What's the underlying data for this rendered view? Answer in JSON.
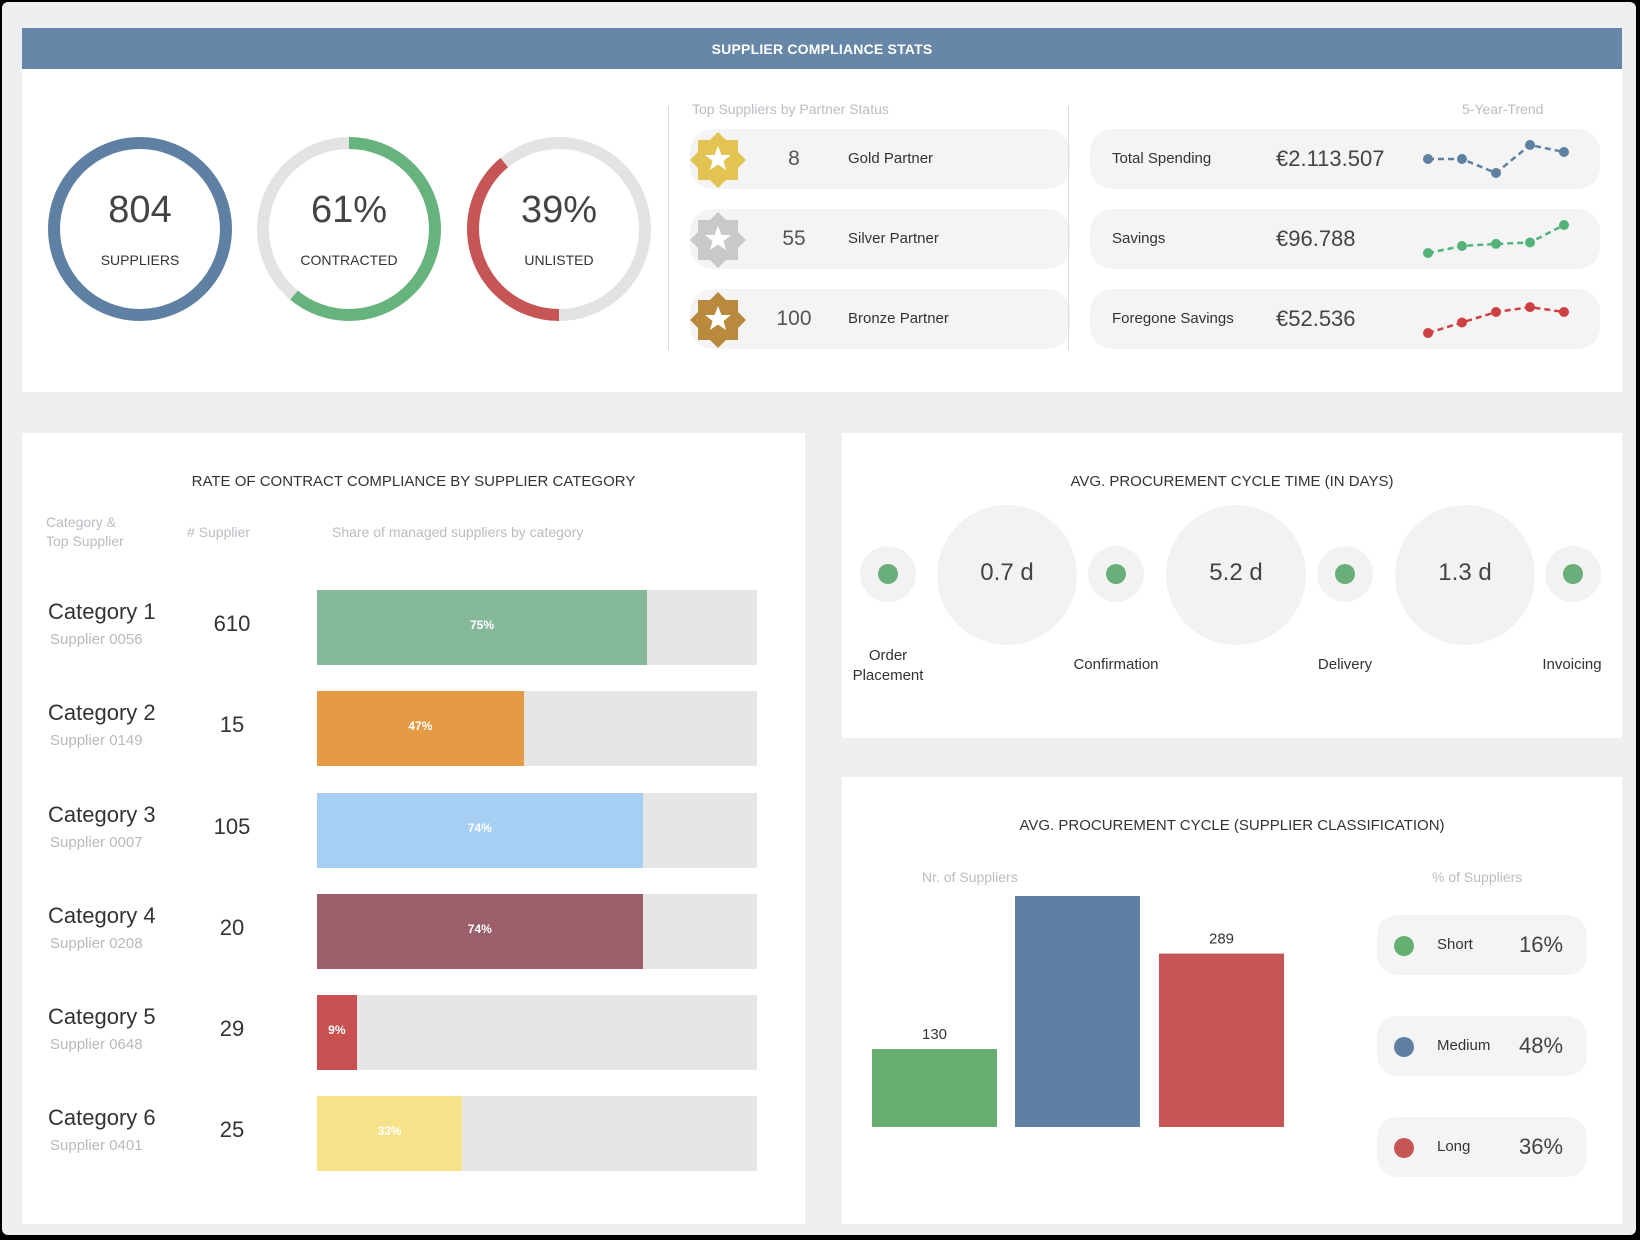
{
  "header": {
    "title": "SUPPLIER COMPLIANCE STATS"
  },
  "kpis": [
    {
      "value": "804",
      "label": "SUPPLIERS",
      "fraction": 1.0,
      "color": "#5e80a3"
    },
    {
      "value": "61%",
      "label": "CONTRACTED",
      "fraction": 0.61,
      "color": "#66b37d"
    },
    {
      "value": "39%",
      "label": "UNLISTED",
      "fraction": 0.39,
      "color": "#c65555"
    }
  ],
  "partners": {
    "title": "Top Suppliers by Partner Status",
    "items": [
      {
        "count": "8",
        "label": "Gold Partner",
        "color": "#e3c453"
      },
      {
        "count": "55",
        "label": "Silver Partner",
        "color": "#c9c9c9"
      },
      {
        "count": "100",
        "label": "Bronze Partner",
        "color": "#b98a3e"
      }
    ]
  },
  "trends": {
    "title": "5-Year-Trend",
    "items": [
      {
        "label": "Total Spending",
        "value": "€2.113.507",
        "color": "#5e80a3",
        "points": [
          2,
          2,
          0,
          4,
          3
        ]
      },
      {
        "label": "Savings",
        "value": "€96.788",
        "color": "#53b379",
        "points": [
          0,
          1,
          1.3,
          1.5,
          4
        ]
      },
      {
        "label": "Foregone Savings",
        "value": "€52.536",
        "color": "#cf4040",
        "points": [
          0,
          1.5,
          3,
          3.7,
          3
        ]
      }
    ]
  },
  "compliance": {
    "title": "RATE OF CONTRACT COMPLIANCE BY SUPPLIER CATEGORY",
    "col_category_1": "Category &",
    "col_category_2": "Top Supplier",
    "col_supplier": "# Supplier",
    "col_share": "Share of managed suppliers by category",
    "rows": [
      {
        "category": "Category 1",
        "supplier": "Supplier 0056",
        "count": "610",
        "pct_label": "75%",
        "share": 0.75,
        "color": "#85b999"
      },
      {
        "category": "Category 2",
        "supplier": "Supplier 0149",
        "count": "15",
        "pct_label": "47%",
        "share": 0.47,
        "color": "#e59b46"
      },
      {
        "category": "Category 3",
        "supplier": "Supplier 0007",
        "count": "105",
        "pct_label": "74%",
        "share": 0.74,
        "color": "#a7cef3"
      },
      {
        "category": "Category 4",
        "supplier": "Supplier 0208",
        "count": "20",
        "pct_label": "74%",
        "share": 0.74,
        "color": "#9b5f6b"
      },
      {
        "category": "Category 5",
        "supplier": "Supplier 0648",
        "count": "29",
        "pct_label": "9%",
        "share": 0.09,
        "color": "#c85050"
      },
      {
        "category": "Category 6",
        "supplier": "Supplier 0401",
        "count": "25",
        "pct_label": "33%",
        "share": 0.33,
        "color": "#f6e289"
      }
    ]
  },
  "cycle_time": {
    "title": "AVG. PROCUREMENT CYCLE TIME (IN DAYS)",
    "steps": [
      "Order\nPlacement",
      "Confirmation",
      "Delivery",
      "Invoicing"
    ],
    "durations": [
      "0.7 d",
      "5.2 d",
      "1.3 d"
    ]
  },
  "classification": {
    "title": "AVG. PROCUREMENT CYCLE (SUPPLIER CLASSIFICATION)",
    "left_label": "Nr. of Suppliers",
    "right_label": "% of Suppliers",
    "legend": [
      {
        "name": "Short",
        "pct": "16%",
        "color": "#67ae71"
      },
      {
        "name": "Medium",
        "pct": "48%",
        "color": "#5e80a3"
      },
      {
        "name": "Long",
        "pct": "36%",
        "color": "#c65555"
      }
    ]
  },
  "chart_data": {
    "type": "bar",
    "title": "AVG. PROCUREMENT CYCLE (SUPPLIER CLASSIFICATION)",
    "categories": [
      "Short",
      "Medium",
      "Long"
    ],
    "values": [
      130,
      385,
      289
    ],
    "colors": [
      "#67ae71",
      "#5e80a3",
      "#c65555"
    ],
    "ylabel": "Nr. of Suppliers",
    "ylim": [
      0,
      400
    ]
  }
}
